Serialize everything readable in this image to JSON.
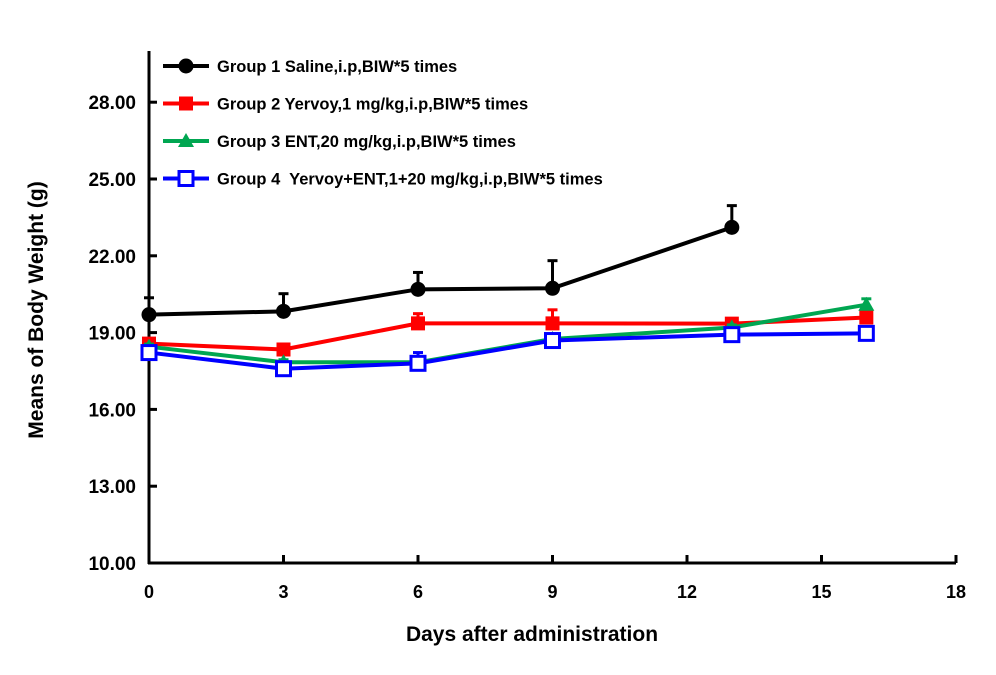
{
  "chart_data": {
    "type": "line",
    "title": "",
    "xlabel": "Days after administration",
    "ylabel": "Means of Body Weight (g)",
    "xlim": [
      0,
      18
    ],
    "ylim": [
      10,
      30
    ],
    "xticks": [
      0,
      3,
      6,
      9,
      12,
      15,
      18
    ],
    "xtick_labels": [
      "0",
      "3",
      "6",
      "9",
      "12",
      "15",
      "18"
    ],
    "yticks": [
      10,
      13,
      16,
      19,
      22,
      25,
      28
    ],
    "ytick_labels": [
      "10.00",
      "13.00",
      "16.00",
      "19.00",
      "22.00",
      "25.00",
      "28.00"
    ],
    "grid": false,
    "legend_position": "top-left",
    "error_bars": "upper",
    "series": [
      {
        "name": "Group 1 Saline,i.p,BIW*5 times",
        "color": "#000000",
        "marker": "filled-circle",
        "x": [
          0,
          3,
          6,
          9,
          13
        ],
        "y": [
          19.7,
          19.83,
          20.69,
          20.73,
          23.11
        ],
        "err": [
          0.66,
          0.69,
          0.66,
          1.08,
          0.85
        ]
      },
      {
        "name": "Group 2 Yervoy,1 mg/kg,i.p,BIW*5 times",
        "color": "#ff0000",
        "marker": "filled-square",
        "x": [
          0,
          3,
          6,
          9,
          13,
          16
        ],
        "y": [
          18.57,
          18.34,
          19.36,
          19.36,
          19.35,
          19.59
        ],
        "err": [
          0.1,
          0.1,
          0.38,
          0.53,
          0.1,
          0.1
        ]
      },
      {
        "name": "Group 3 ENT,20 mg/kg,i.p,BIW*5 times",
        "color": "#00a651",
        "marker": "filled-triangle",
        "x": [
          0,
          3,
          6,
          9,
          13,
          16
        ],
        "y": [
          18.45,
          17.84,
          17.84,
          18.75,
          19.2,
          20.09
        ],
        "err": [
          0.1,
          0.1,
          0.1,
          0.1,
          0.1,
          0.23
        ]
      },
      {
        "name": "Group 4  Yervoy+ENT,1+20 mg/kg,i.p,BIW*5 times",
        "color": "#0000ff",
        "marker": "open-square",
        "x": [
          0,
          3,
          6,
          9,
          13,
          16
        ],
        "y": [
          18.22,
          17.59,
          17.8,
          18.69,
          18.92,
          18.97
        ],
        "err": [
          0.1,
          0.1,
          0.42,
          0.1,
          0.1,
          0.1
        ]
      }
    ]
  }
}
